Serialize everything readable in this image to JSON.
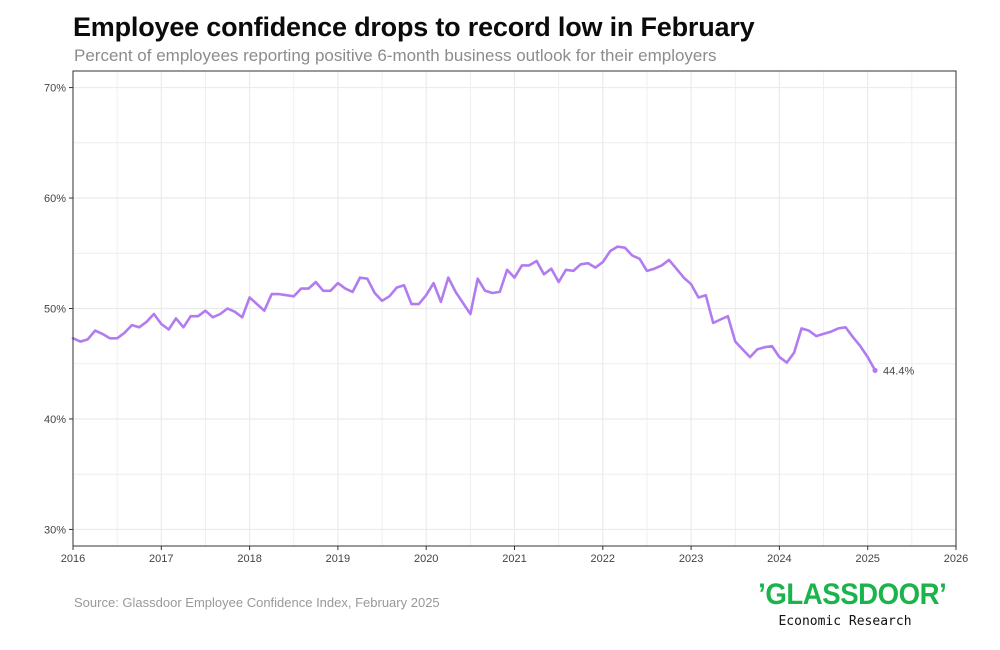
{
  "title": "Employee confidence drops to record low in February",
  "subtitle": "Percent of employees reporting positive 6-month business outlook for their employers",
  "source": "Source: Glassdoor Employee Confidence Index, February 2025",
  "logo": {
    "wordmark": "’GLASSDOOR’",
    "tagline": "Economic Research",
    "color": "#1bb34b"
  },
  "colors": {
    "line": "#b27cf0",
    "grid": "#ebebeb",
    "panel_border": "#333333"
  },
  "chart_data": {
    "type": "line",
    "title": "Employee confidence drops to record low in February",
    "subtitle": "Percent of employees reporting positive 6-month business outlook for their employers",
    "xlabel": "",
    "ylabel": "",
    "xlim": [
      2016,
      2026
    ],
    "ylim": [
      28.5,
      71.5
    ],
    "x_ticks": [
      2016,
      2017,
      2018,
      2019,
      2020,
      2021,
      2022,
      2023,
      2024,
      2025,
      2026
    ],
    "y_ticks": [
      30,
      40,
      50,
      60,
      70
    ],
    "y_tick_labels": [
      "30%",
      "40%",
      "50%",
      "60%",
      "70%"
    ],
    "grid": true,
    "legend": "none",
    "end_label": "44.4%",
    "series": [
      {
        "x": [
          "2016-01",
          "2016-02",
          "2016-03",
          "2016-04",
          "2016-05",
          "2016-06",
          "2016-07",
          "2016-08",
          "2016-09",
          "2016-10",
          "2016-11",
          "2016-12",
          "2017-01",
          "2017-02",
          "2017-03",
          "2017-04",
          "2017-05",
          "2017-06",
          "2017-07",
          "2017-08",
          "2017-09",
          "2017-10",
          "2017-11",
          "2017-12",
          "2018-01",
          "2018-02",
          "2018-03",
          "2018-04",
          "2018-05",
          "2018-06",
          "2018-07",
          "2018-08",
          "2018-09",
          "2018-10",
          "2018-11",
          "2018-12",
          "2019-01",
          "2019-02",
          "2019-03",
          "2019-04",
          "2019-05",
          "2019-06",
          "2019-07",
          "2019-08",
          "2019-09",
          "2019-10",
          "2019-11",
          "2019-12",
          "2020-01",
          "2020-02",
          "2020-03",
          "2020-04",
          "2020-05",
          "2020-06",
          "2020-07",
          "2020-08",
          "2020-09",
          "2020-10",
          "2020-11",
          "2020-12",
          "2021-01",
          "2021-02",
          "2021-03",
          "2021-04",
          "2021-05",
          "2021-06",
          "2021-07",
          "2021-08",
          "2021-09",
          "2021-10",
          "2021-11",
          "2021-12",
          "2022-01",
          "2022-02",
          "2022-03",
          "2022-04",
          "2022-05",
          "2022-06",
          "2022-07",
          "2022-08",
          "2022-09",
          "2022-10",
          "2022-11",
          "2022-12",
          "2023-01",
          "2023-02",
          "2023-03",
          "2023-04",
          "2023-05",
          "2023-06",
          "2023-07",
          "2023-08",
          "2023-09",
          "2023-10",
          "2023-11",
          "2023-12",
          "2024-01",
          "2024-02",
          "2024-03",
          "2024-04",
          "2024-05",
          "2024-06",
          "2024-07",
          "2024-08",
          "2024-09",
          "2024-10",
          "2024-11",
          "2024-12",
          "2025-01",
          "2025-02"
        ],
        "y": [
          47.3,
          47.0,
          47.2,
          48.0,
          47.7,
          47.3,
          47.3,
          47.8,
          48.5,
          48.3,
          48.8,
          49.5,
          48.6,
          48.1,
          49.1,
          48.3,
          49.3,
          49.3,
          49.8,
          49.2,
          49.5,
          50.0,
          49.7,
          49.2,
          51.0,
          50.4,
          49.8,
          51.3,
          51.3,
          51.2,
          51.1,
          51.8,
          51.8,
          52.4,
          51.6,
          51.6,
          52.3,
          51.8,
          51.5,
          52.8,
          52.7,
          51.4,
          50.7,
          51.1,
          51.9,
          52.1,
          50.4,
          50.4,
          51.2,
          52.3,
          50.6,
          52.8,
          51.5,
          50.5,
          49.5,
          52.7,
          51.6,
          51.4,
          51.5,
          53.5,
          52.8,
          53.9,
          53.9,
          54.3,
          53.1,
          53.6,
          52.4,
          53.5,
          53.4,
          54.0,
          54.1,
          53.7,
          54.2,
          55.2,
          55.6,
          55.5,
          54.8,
          54.5,
          53.4,
          53.6,
          53.9,
          54.4,
          53.6,
          52.8,
          52.2,
          51.0,
          51.2,
          48.7,
          49.0,
          49.3,
          47.0,
          46.3,
          45.6,
          46.3,
          46.5,
          46.6,
          45.6,
          45.1,
          46.0,
          48.2,
          48.0,
          47.5,
          47.7,
          47.9,
          48.2,
          48.3,
          47.4,
          46.6,
          45.6,
          44.4
        ]
      }
    ]
  }
}
